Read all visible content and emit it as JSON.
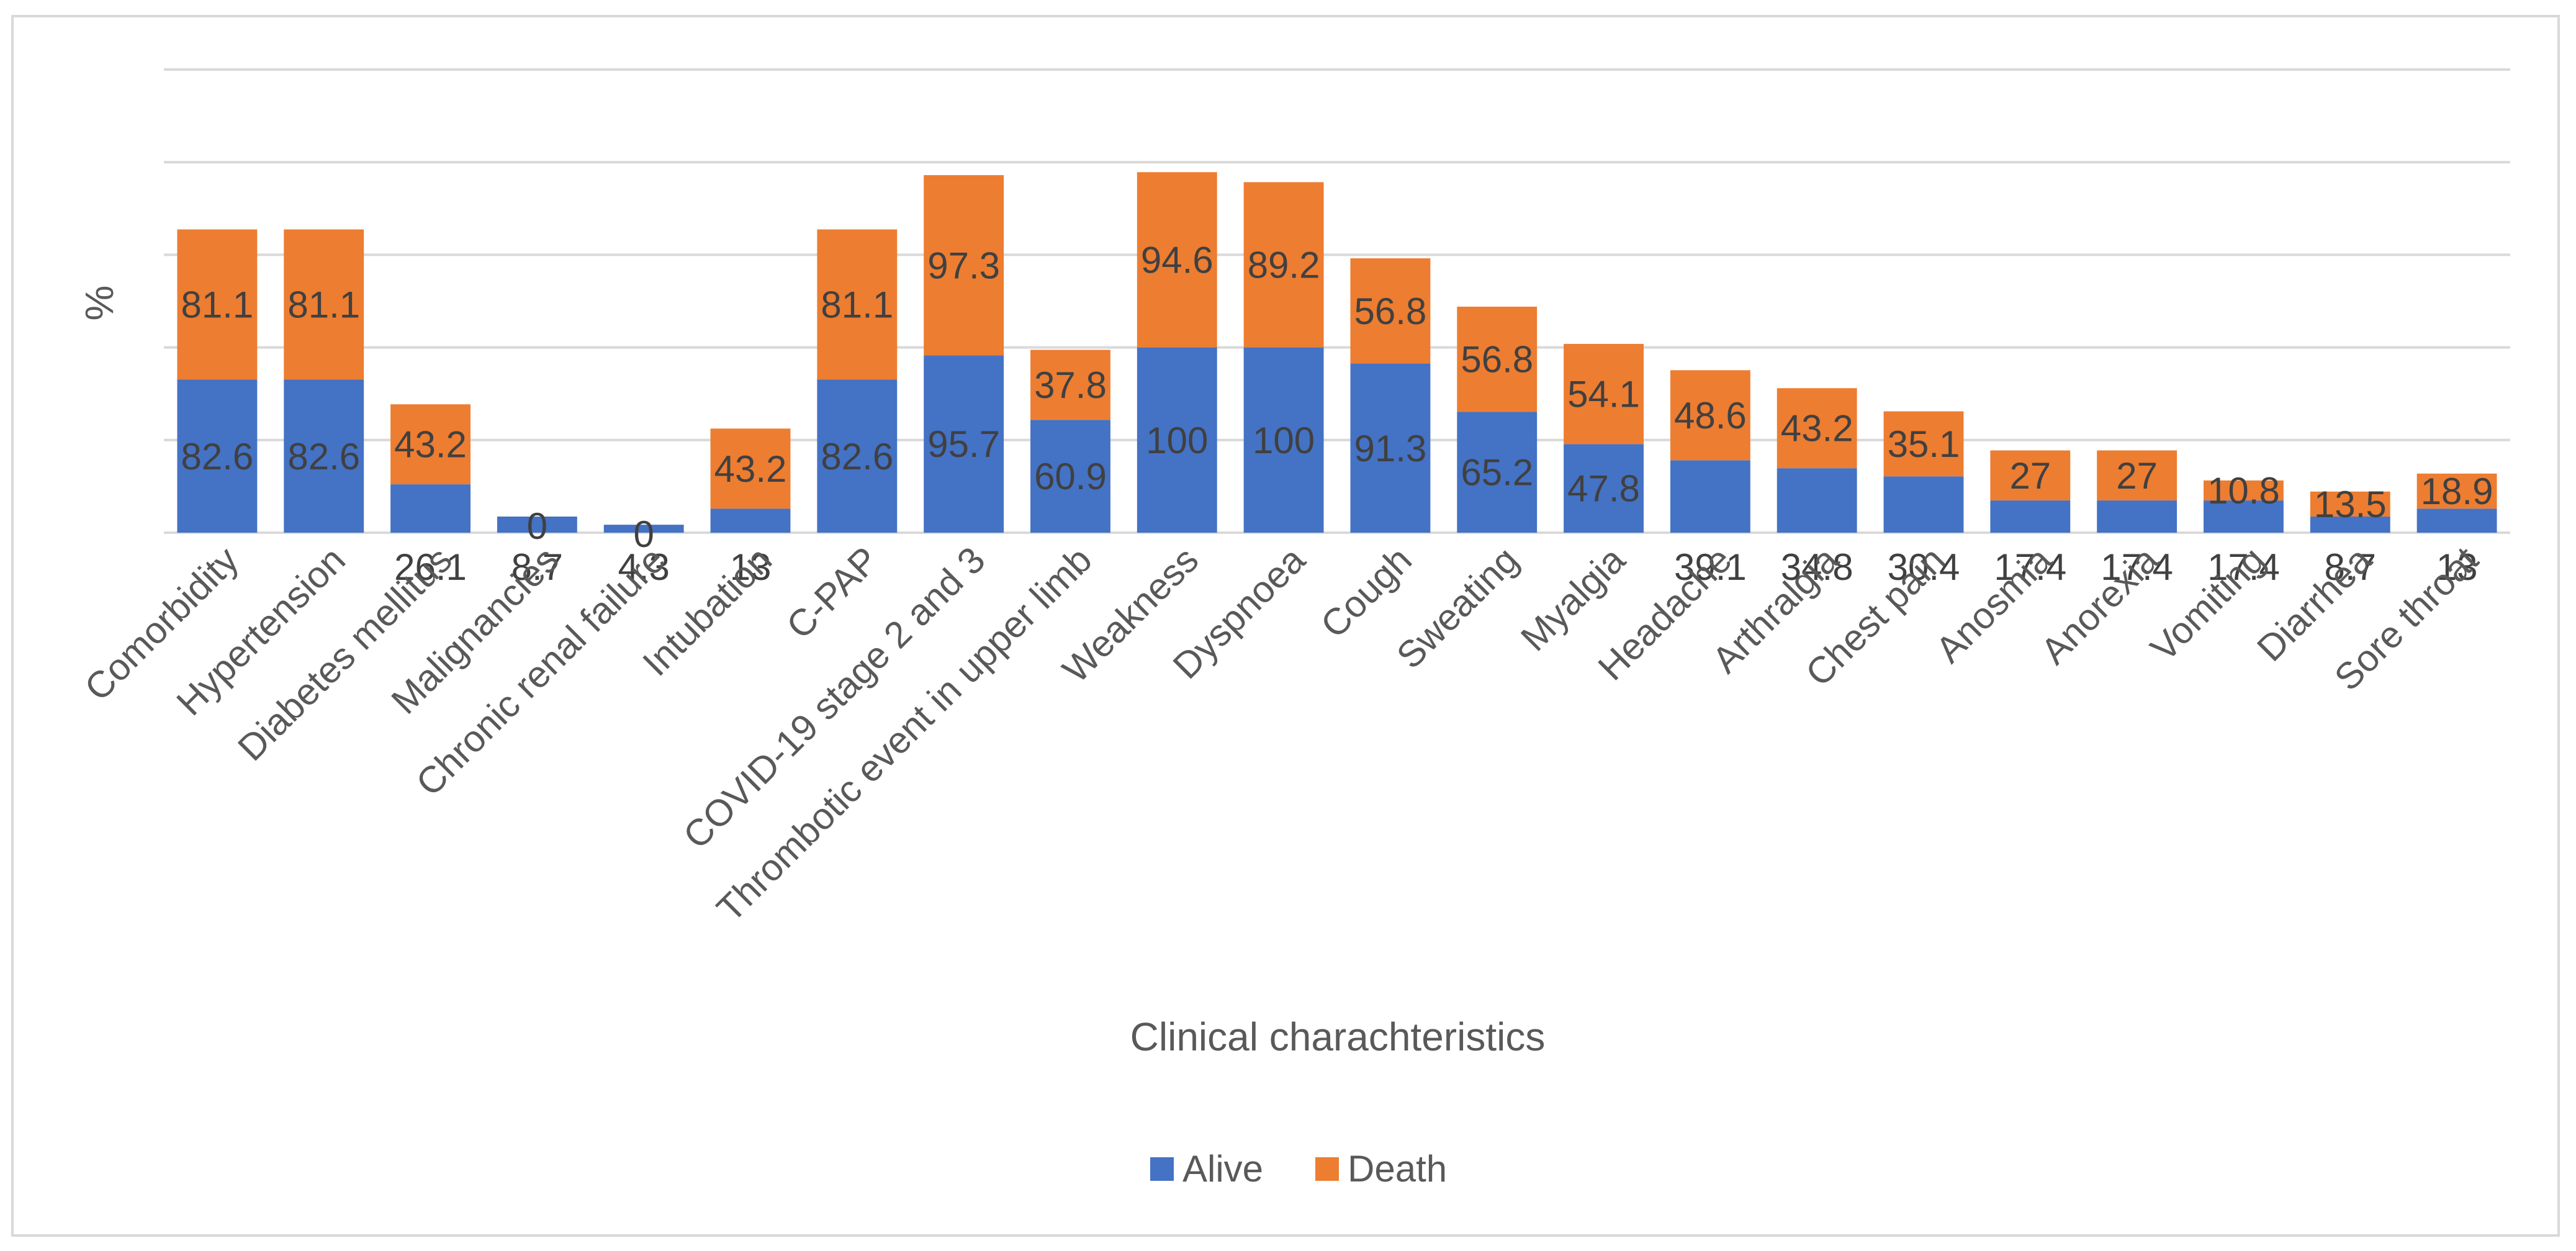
{
  "chart_data": {
    "type": "bar",
    "stacked": true,
    "title": "",
    "xlabel": "Clinical charachteristics",
    "ylabel": "%",
    "ylim": [
      0,
      250
    ],
    "grid": true,
    "legend_position": "bottom",
    "categories": [
      "Comorbidity",
      "Hypertension",
      "Diabetes mellitus",
      "Malignancies",
      "Chronic renal failure",
      "Intubation",
      "C-PAP",
      "COVID-19 stage 2 and 3",
      "Thrombotic event in upper limb",
      "Weakness",
      "Dyspnoea",
      "Cough",
      "Sweating",
      "Myalgia",
      "Headache",
      "Arthralgia",
      "Chest pain",
      "Anosmia",
      "Anorexia",
      "Vomiting",
      "Diarrhea",
      "Sore throat"
    ],
    "series": [
      {
        "name": "Alive",
        "color": "#4472c4",
        "values": [
          82.6,
          82.6,
          26.1,
          8.7,
          4.3,
          13,
          82.6,
          95.7,
          60.9,
          100,
          100,
          91.3,
          65.2,
          47.8,
          39.1,
          34.8,
          30.4,
          17.4,
          17.4,
          17.4,
          8.7,
          13
        ],
        "labels": [
          "82.6",
          "82.6",
          "26.1",
          "8.7",
          "4.3",
          "13",
          "82.6",
          "95.7",
          "60.9",
          "100",
          "100",
          "91.3",
          "65.2",
          "47.8",
          "39.1",
          "34.8",
          "30.4",
          "17.4",
          "17.4",
          "17.4",
          "8.7",
          "13"
        ]
      },
      {
        "name": "Death",
        "color": "#ed7d31",
        "values": [
          81.1,
          81.1,
          43.2,
          0,
          0,
          43.2,
          81.1,
          97.3,
          37.8,
          94.6,
          89.2,
          56.8,
          56.8,
          54.1,
          48.6,
          43.2,
          35.1,
          27,
          27,
          10.8,
          13.5,
          18.9
        ],
        "labels": [
          "81.1",
          "81.1",
          "43.2",
          "0",
          "0",
          "43.2",
          "81.1",
          "97.3",
          "37.8",
          "94.6",
          "89.2",
          "56.8",
          "56.8",
          "54.1",
          "48.6",
          "43.2",
          "35.1",
          "27",
          "27",
          "10.8",
          "13.5",
          "18.9"
        ]
      }
    ]
  }
}
